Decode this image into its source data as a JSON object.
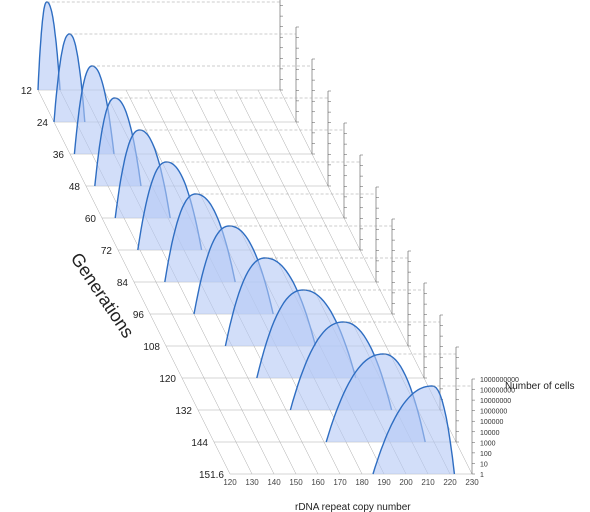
{
  "chart_data": {
    "type": "area",
    "title": "",
    "xlabel": "rDNA repeat copy number",
    "ylabel": "Generations",
    "zlabel": "Number of cells",
    "x_ticks": [
      "120",
      "130",
      "140",
      "150",
      "160",
      "170",
      "180",
      "190",
      "200",
      "210",
      "220",
      "230"
    ],
    "xlim": [
      120,
      230
    ],
    "y_ticks": [
      "12",
      "24",
      "36",
      "48",
      "60",
      "72",
      "84",
      "96",
      "108",
      "120",
      "132",
      "144",
      "151.6"
    ],
    "z_ticks": [
      "1",
      "10",
      "100",
      "1000",
      "10000",
      "100000",
      "1000000",
      "10000000",
      "100000000",
      "1000000000"
    ],
    "z_scale": "log",
    "series": [
      {
        "generation": 12,
        "min": 120,
        "peak": 124,
        "max": 130
      },
      {
        "generation": 24,
        "min": 120,
        "peak": 127,
        "max": 134
      },
      {
        "generation": 36,
        "min": 122,
        "peak": 130,
        "max": 140
      },
      {
        "generation": 48,
        "min": 124,
        "peak": 133,
        "max": 145
      },
      {
        "generation": 60,
        "min": 126,
        "peak": 137,
        "max": 151
      },
      {
        "generation": 72,
        "min": 129,
        "peak": 142,
        "max": 158
      },
      {
        "generation": 84,
        "min": 134,
        "peak": 148,
        "max": 166
      },
      {
        "generation": 96,
        "min": 140,
        "peak": 156,
        "max": 176
      },
      {
        "generation": 108,
        "min": 147,
        "peak": 165,
        "max": 188
      },
      {
        "generation": 120,
        "min": 154,
        "peak": 175,
        "max": 199
      },
      {
        "generation": 132,
        "min": 162,
        "peak": 186,
        "max": 208
      },
      {
        "generation": 144,
        "min": 171,
        "peak": 197,
        "max": 216
      },
      {
        "generation": 151.6,
        "min": 185,
        "peak": 212,
        "max": 222
      }
    ],
    "colors": {
      "fill": "#b4c8f5",
      "fill_opacity": 0.6,
      "stroke": "#2f6ec2",
      "grid": "#aaaaaa"
    }
  }
}
